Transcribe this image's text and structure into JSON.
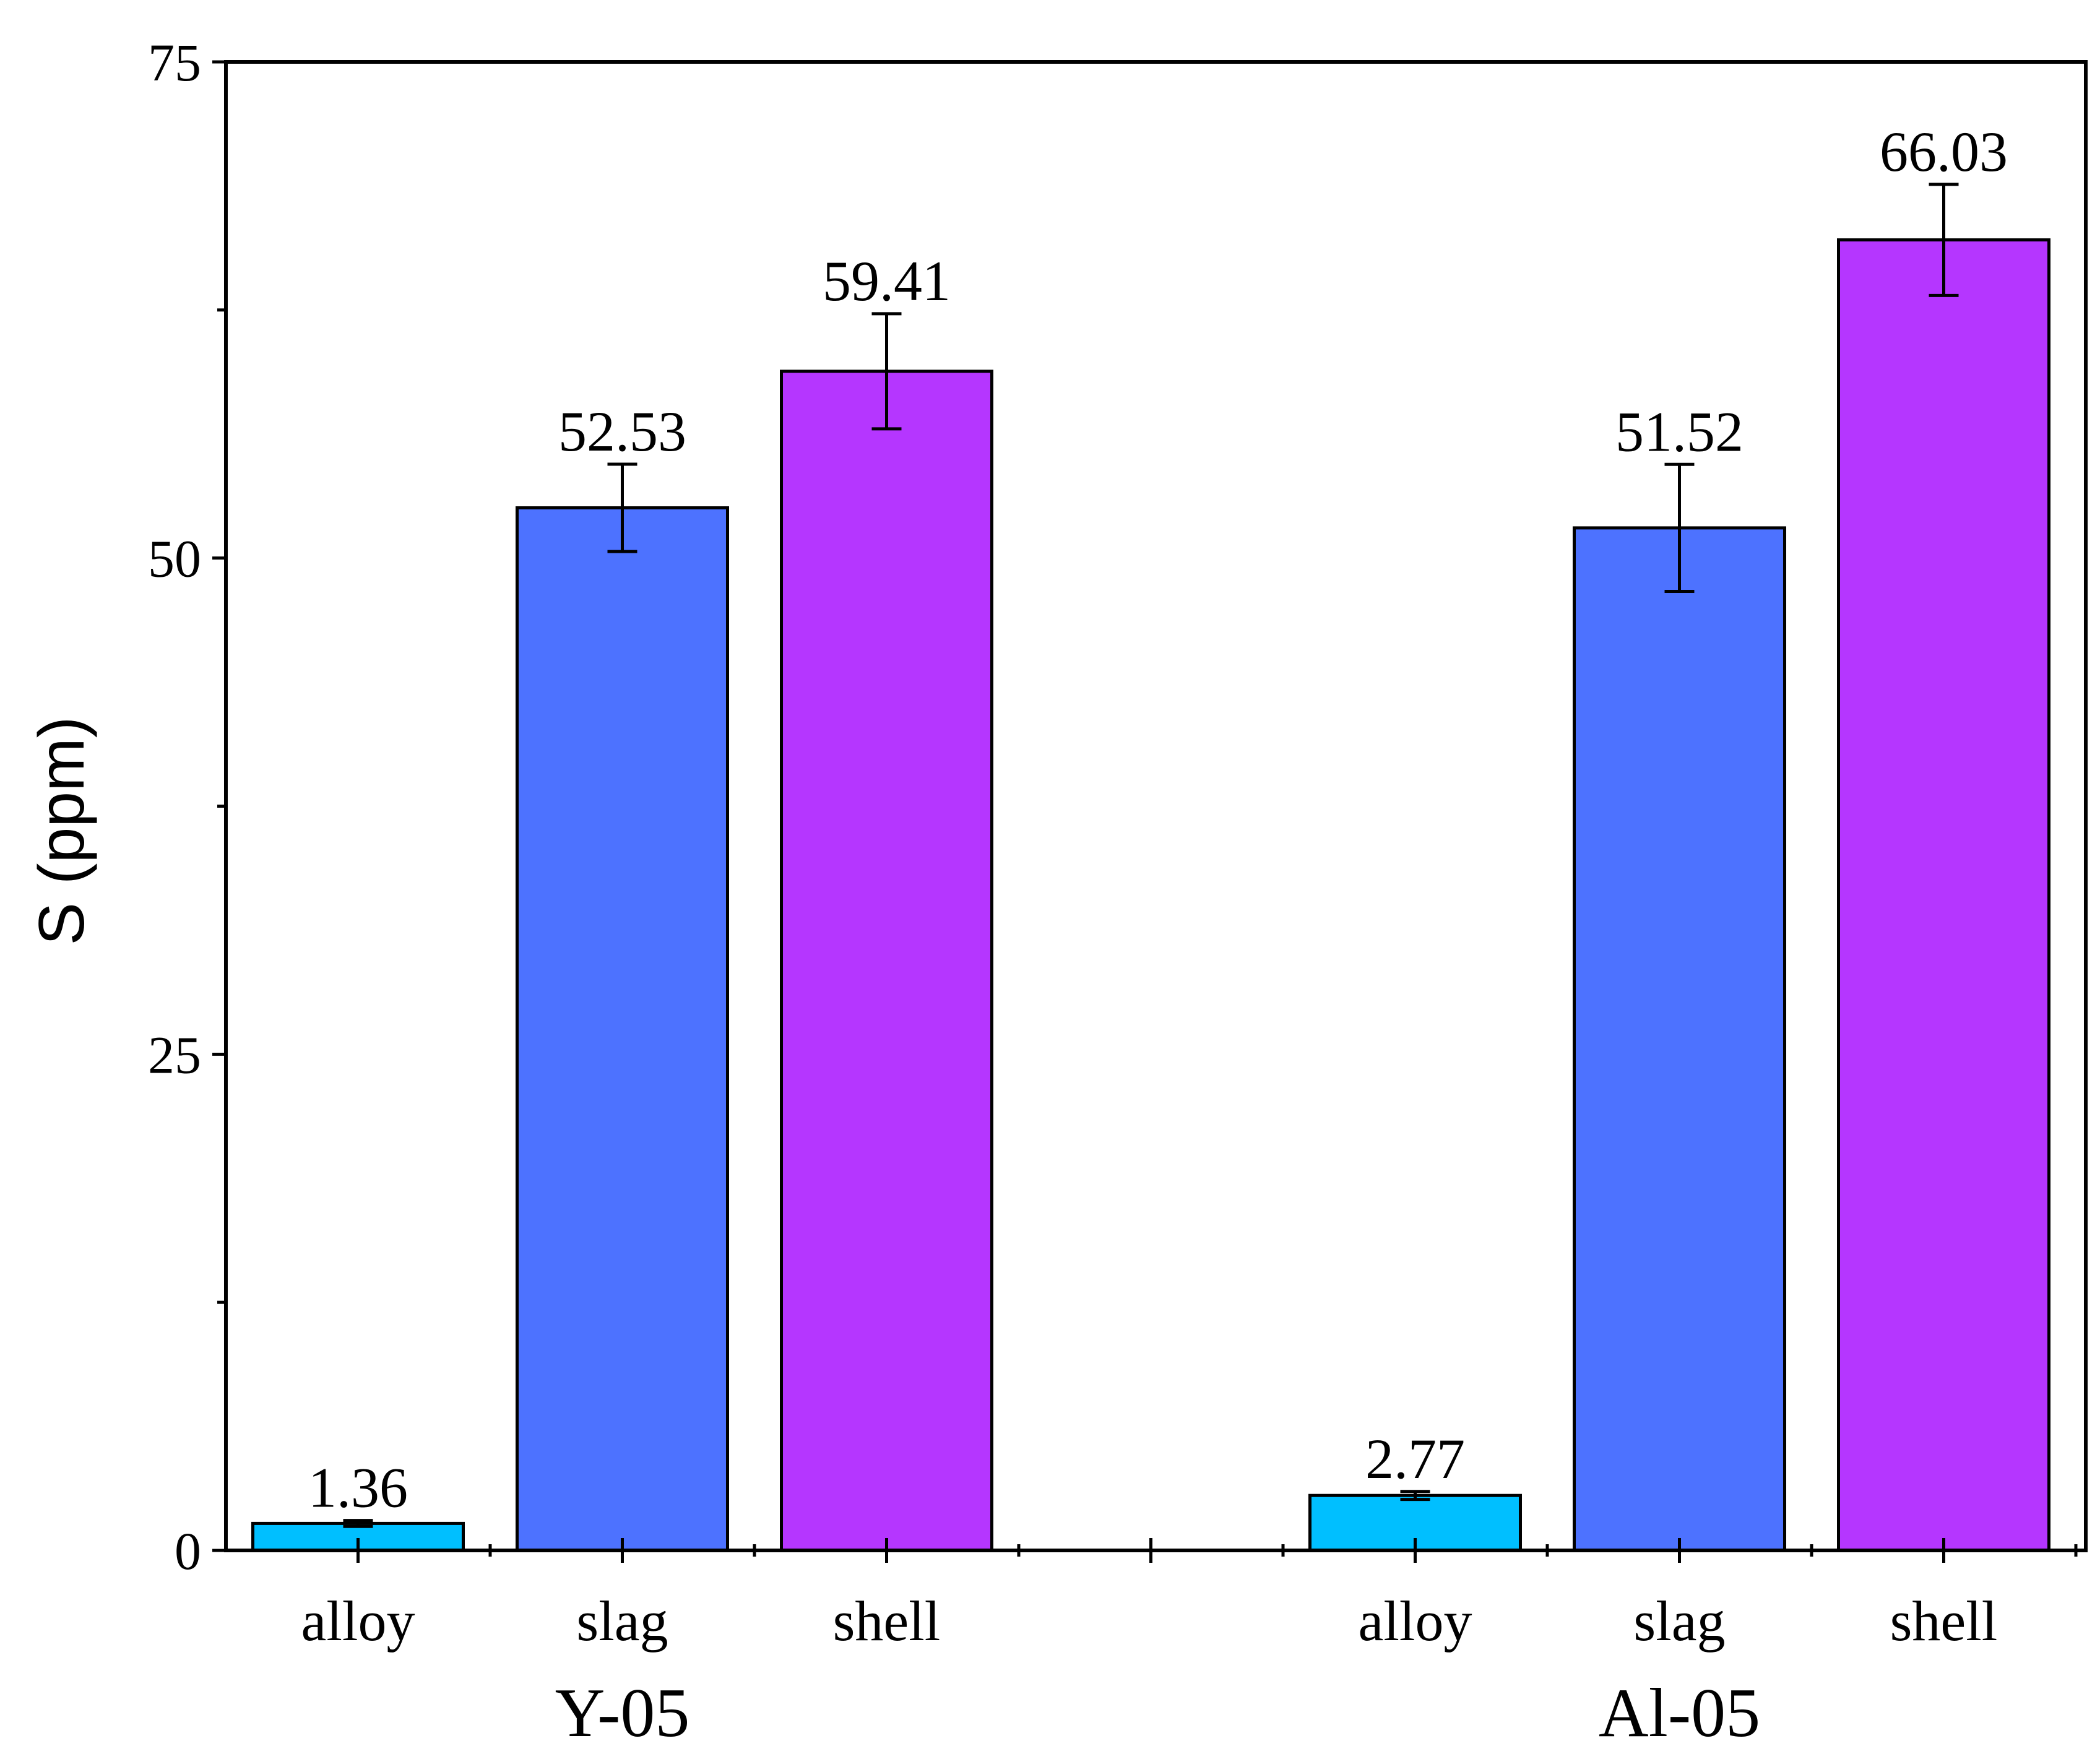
{
  "chart_data": {
    "type": "bar",
    "title": "",
    "xlabel": "",
    "ylabel": "S (ppm)",
    "ylim": [
      0,
      75
    ],
    "y_major_ticks": [
      0,
      25,
      50,
      75
    ],
    "y_minor_ticks": [
      12.5,
      37.5,
      62.5
    ],
    "grid": false,
    "groups": [
      {
        "name": "Y-05",
        "bars": [
          {
            "category": "alloy",
            "value": 1.36,
            "label": "1.36",
            "error": 0.15,
            "color": "#00BFFF"
          },
          {
            "category": "slag",
            "value": 52.53,
            "label": "52.53",
            "error": 2.2,
            "color": "#4D72FF"
          },
          {
            "category": "shell",
            "value": 59.41,
            "label": "59.41",
            "error": 2.9,
            "color": "#B536FF"
          }
        ]
      },
      {
        "name": "Al-05",
        "bars": [
          {
            "category": "alloy",
            "value": 2.77,
            "label": "2.77",
            "error": 0.2,
            "color": "#00BFFF"
          },
          {
            "category": "slag",
            "value": 51.52,
            "label": "51.52",
            "error": 3.2,
            "color": "#4D72FF"
          },
          {
            "category": "shell",
            "value": 66.03,
            "label": "66.03",
            "error": 2.8,
            "color": "#B536FF"
          }
        ]
      }
    ]
  }
}
